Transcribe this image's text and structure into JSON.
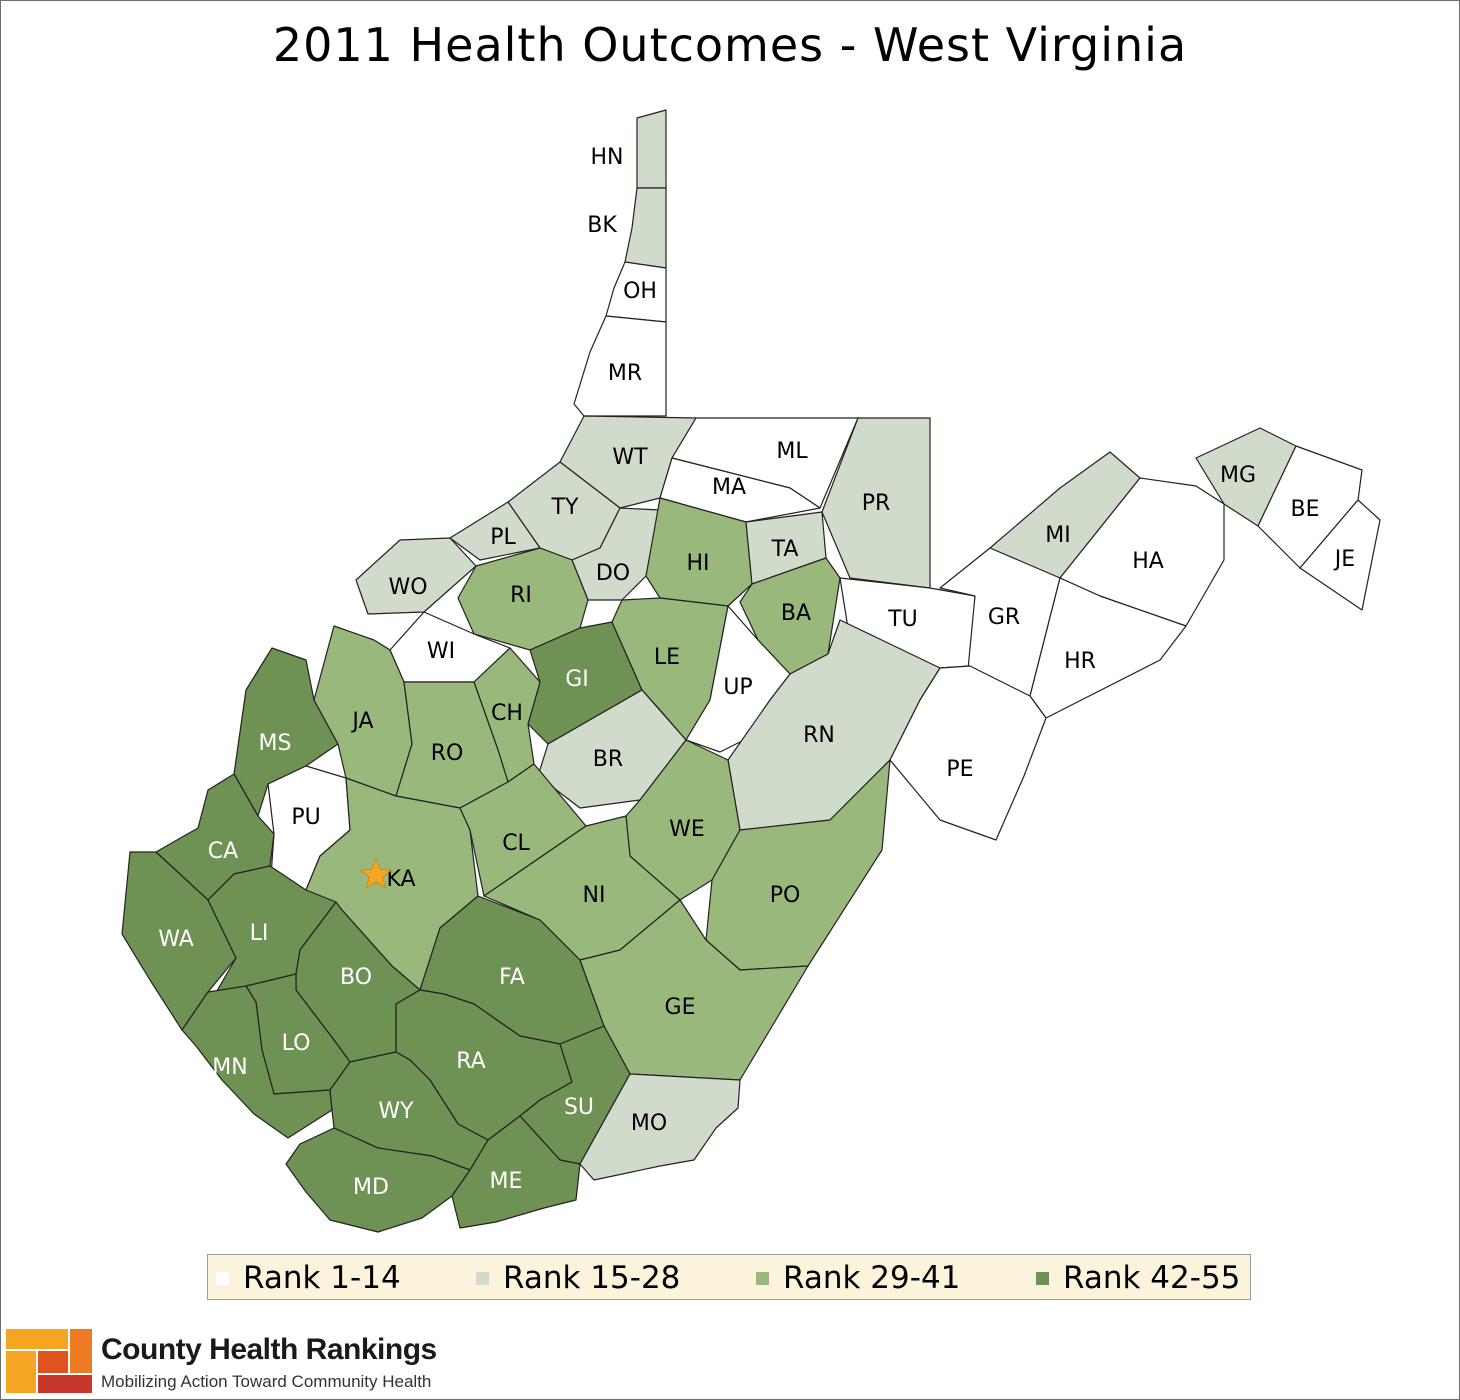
{
  "title": "2011 Health Outcomes - West Virginia",
  "colors": {
    "rank_1_14": "#ffffff",
    "rank_15_28": "#d1dbcc",
    "rank_29_41": "#98b97b",
    "rank_42_55": "#6e9154",
    "capital_star": "#f5a524"
  },
  "legend": [
    {
      "label": "Rank 1-14",
      "tier": "rank_1_14"
    },
    {
      "label": "Rank 15-28",
      "tier": "rank_15_28"
    },
    {
      "label": "Rank 29-41",
      "tier": "rank_29_41"
    },
    {
      "label": "Rank 42-55",
      "tier": "rank_42_55"
    }
  ],
  "counties": [
    {
      "code": "HN",
      "tier": "rank_15_28"
    },
    {
      "code": "BK",
      "tier": "rank_15_28"
    },
    {
      "code": "OH",
      "tier": "rank_1_14"
    },
    {
      "code": "MR",
      "tier": "rank_1_14"
    },
    {
      "code": "WT",
      "tier": "rank_15_28"
    },
    {
      "code": "ML",
      "tier": "rank_1_14"
    },
    {
      "code": "MA",
      "tier": "rank_1_14"
    },
    {
      "code": "PR",
      "tier": "rank_15_28"
    },
    {
      "code": "TY",
      "tier": "rank_15_28"
    },
    {
      "code": "PL",
      "tier": "rank_15_28"
    },
    {
      "code": "DO",
      "tier": "rank_15_28"
    },
    {
      "code": "HI",
      "tier": "rank_29_41"
    },
    {
      "code": "TA",
      "tier": "rank_15_28"
    },
    {
      "code": "WO",
      "tier": "rank_15_28"
    },
    {
      "code": "RI",
      "tier": "rank_29_41"
    },
    {
      "code": "BA",
      "tier": "rank_29_41"
    },
    {
      "code": "TU",
      "tier": "rank_1_14"
    },
    {
      "code": "MI",
      "tier": "rank_15_28"
    },
    {
      "code": "MG",
      "tier": "rank_15_28"
    },
    {
      "code": "BE",
      "tier": "rank_1_14"
    },
    {
      "code": "JE",
      "tier": "rank_1_14"
    },
    {
      "code": "HA",
      "tier": "rank_1_14"
    },
    {
      "code": "GR",
      "tier": "rank_1_14"
    },
    {
      "code": "HR",
      "tier": "rank_1_14"
    },
    {
      "code": "WI",
      "tier": "rank_1_14"
    },
    {
      "code": "GI",
      "tier": "rank_42_55"
    },
    {
      "code": "LE",
      "tier": "rank_29_41"
    },
    {
      "code": "UP",
      "tier": "rank_1_14"
    },
    {
      "code": "MS",
      "tier": "rank_42_55"
    },
    {
      "code": "JA",
      "tier": "rank_29_41"
    },
    {
      "code": "CH",
      "tier": "rank_29_41"
    },
    {
      "code": "RO",
      "tier": "rank_29_41"
    },
    {
      "code": "BR",
      "tier": "rank_15_28"
    },
    {
      "code": "RN",
      "tier": "rank_15_28"
    },
    {
      "code": "PE",
      "tier": "rank_1_14"
    },
    {
      "code": "PU",
      "tier": "rank_1_14"
    },
    {
      "code": "CA",
      "tier": "rank_42_55"
    },
    {
      "code": "KA",
      "tier": "rank_29_41"
    },
    {
      "code": "CL",
      "tier": "rank_29_41"
    },
    {
      "code": "WE",
      "tier": "rank_29_41"
    },
    {
      "code": "NI",
      "tier": "rank_29_41"
    },
    {
      "code": "PO",
      "tier": "rank_29_41"
    },
    {
      "code": "WA",
      "tier": "rank_42_55"
    },
    {
      "code": "LI",
      "tier": "rank_42_55"
    },
    {
      "code": "BO",
      "tier": "rank_42_55"
    },
    {
      "code": "FA",
      "tier": "rank_42_55"
    },
    {
      "code": "GE",
      "tier": "rank_29_41"
    },
    {
      "code": "LO",
      "tier": "rank_42_55"
    },
    {
      "code": "MN",
      "tier": "rank_42_55"
    },
    {
      "code": "RA",
      "tier": "rank_42_55"
    },
    {
      "code": "WY",
      "tier": "rank_42_55"
    },
    {
      "code": "SU",
      "tier": "rank_42_55"
    },
    {
      "code": "MO",
      "tier": "rank_15_28"
    },
    {
      "code": "MD",
      "tier": "rank_42_55"
    },
    {
      "code": "ME",
      "tier": "rank_42_55"
    }
  ],
  "capital": {
    "county": "KA",
    "marker": "star-icon"
  },
  "brand": {
    "name": "County Health Rankings",
    "tagline": "Mobilizing Action Toward Community Health",
    "logo_colors": [
      "#f5a524",
      "#ef7b22",
      "#e0521f",
      "#c7362a"
    ]
  }
}
